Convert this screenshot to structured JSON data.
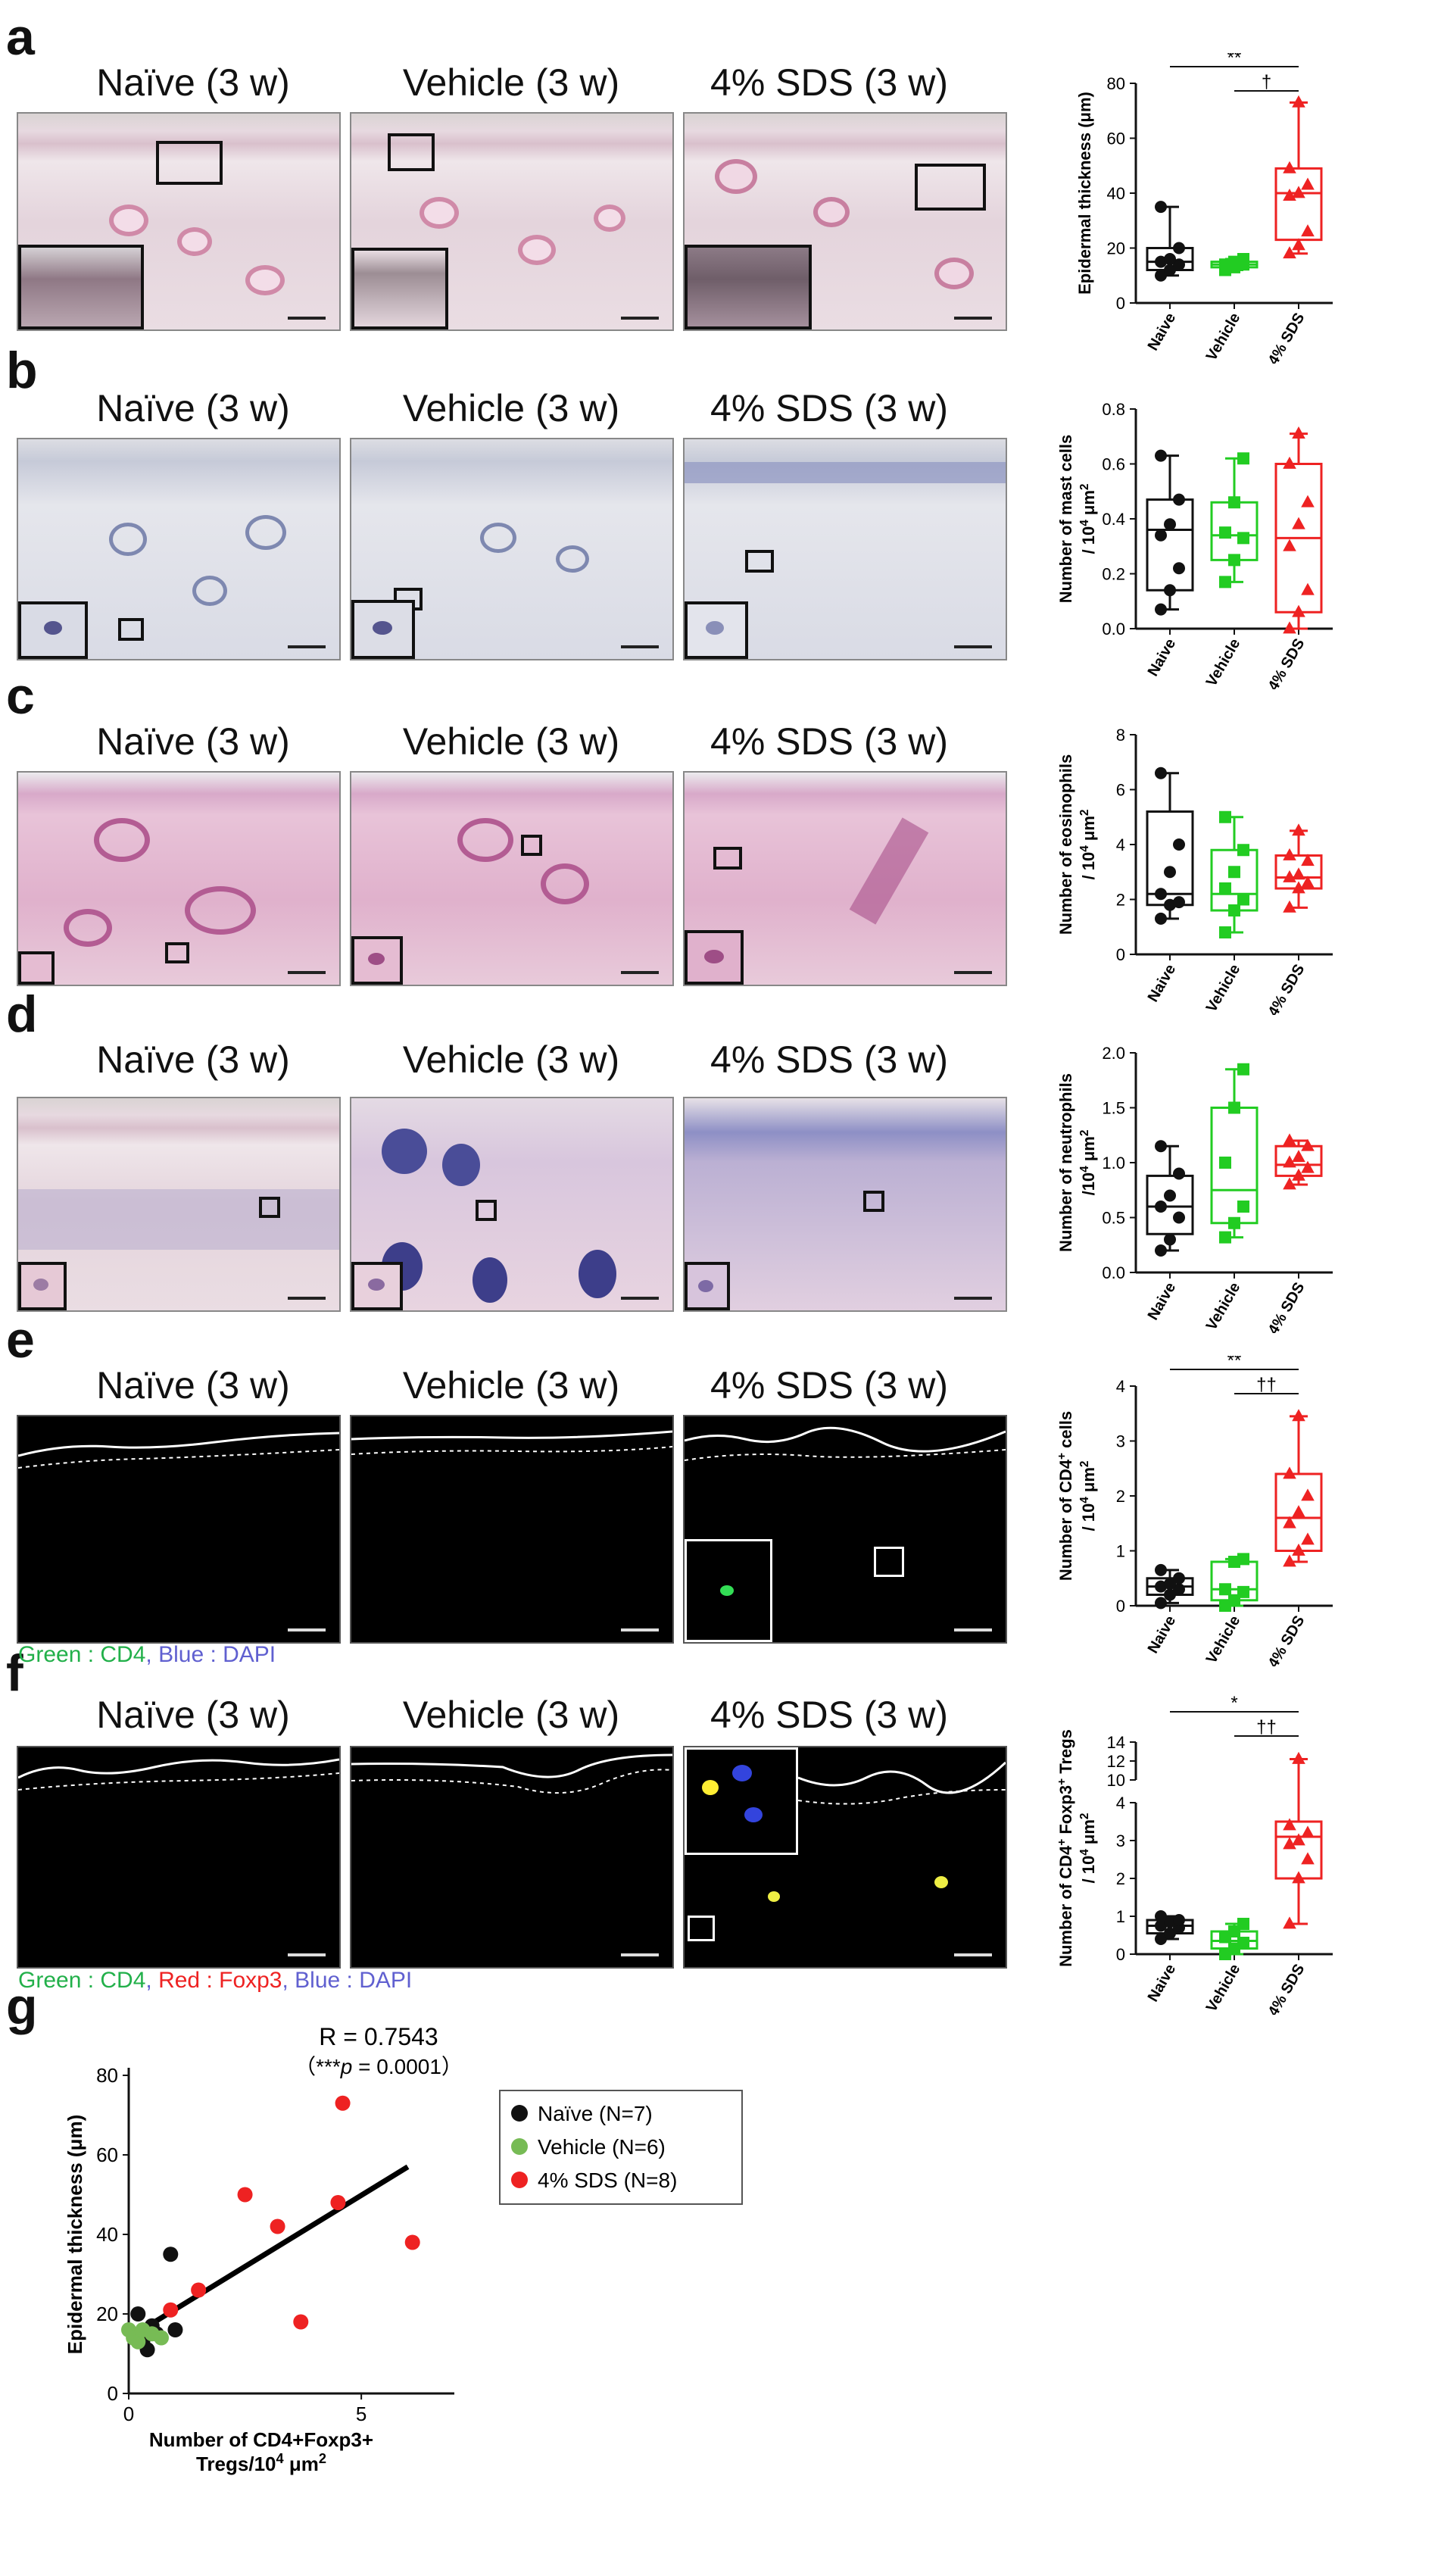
{
  "panel_labels": [
    "a",
    "b",
    "c",
    "d",
    "e",
    "f",
    "g"
  ],
  "conditions": [
    "Naïve (3 w)",
    "Vehicle (3 w)",
    "4% SDS (3 w)"
  ],
  "groups": [
    "Naive",
    "Vehicle",
    "4% SDS"
  ],
  "colors": {
    "naive": "#111111",
    "vehicle": "#22cc22",
    "sds": "#ee2222"
  },
  "captions": {
    "e": [
      {
        "text": "Green : CD4",
        "color": "#22b04a"
      },
      {
        "text": ", ",
        "color": "#6060d0"
      },
      {
        "text": "Blue : DAPI",
        "color": "#6060d0"
      }
    ],
    "f": [
      {
        "text": "Green : CD4",
        "color": "#22b04a"
      },
      {
        "text": ", ",
        "color": "#6060d0"
      },
      {
        "text": "Red : Foxp3",
        "color": "#ee2222"
      },
      {
        "text": ", ",
        "color": "#6060d0"
      },
      {
        "text": "Blue : DAPI",
        "color": "#6060d0"
      }
    ]
  },
  "chart_data": [
    {
      "type": "box",
      "panel": "a",
      "ylabel": "Epidermal thickness (μm)",
      "ylim": [
        0,
        80
      ],
      "yticks": [
        0,
        20,
        40,
        60,
        80
      ],
      "categories": [
        "Naive",
        "Vehicle",
        "4% SDS"
      ],
      "boxes": [
        {
          "min": 10,
          "q1": 12,
          "median": 15,
          "q3": 20,
          "max": 35
        },
        {
          "min": 12,
          "q1": 13,
          "median": 14,
          "q3": 15,
          "max": 16
        },
        {
          "min": 18,
          "q1": 23,
          "median": 40,
          "q3": 49,
          "max": 73
        }
      ],
      "points": [
        [
          10,
          12,
          14,
          15,
          16,
          20,
          35
        ],
        [
          12,
          13,
          14,
          14,
          15,
          16
        ],
        [
          18,
          21,
          26,
          39,
          40,
          43,
          49,
          73
        ]
      ],
      "significance": [
        {
          "from": 0,
          "to": 2,
          "label": "**"
        },
        {
          "from": 1,
          "to": 2,
          "label": "†"
        }
      ]
    },
    {
      "type": "box",
      "panel": "b",
      "ylabel_lines": [
        "Number of mast cells",
        "/ 10^4 μm^2"
      ],
      "ylim": [
        0,
        0.8
      ],
      "yticks": [
        0.0,
        0.2,
        0.4,
        0.6,
        0.8
      ],
      "categories": [
        "Naive",
        "Vehicle",
        "4% SDS"
      ],
      "boxes": [
        {
          "min": 0.07,
          "q1": 0.14,
          "median": 0.36,
          "q3": 0.47,
          "max": 0.63
        },
        {
          "min": 0.17,
          "q1": 0.25,
          "median": 0.34,
          "q3": 0.46,
          "max": 0.62
        },
        {
          "min": 0.0,
          "q1": 0.06,
          "median": 0.33,
          "q3": 0.6,
          "max": 0.71
        }
      ],
      "points": [
        [
          0.07,
          0.14,
          0.22,
          0.34,
          0.38,
          0.47,
          0.63
        ],
        [
          0.17,
          0.25,
          0.33,
          0.35,
          0.46,
          0.62
        ],
        [
          0.0,
          0.06,
          0.14,
          0.3,
          0.38,
          0.46,
          0.6,
          0.71
        ]
      ],
      "significance": []
    },
    {
      "type": "box",
      "panel": "c",
      "ylabel_lines": [
        "Number of eosinophils",
        "/ 10^4 μm^2"
      ],
      "ylim": [
        0,
        8
      ],
      "yticks": [
        0,
        2,
        4,
        6,
        8
      ],
      "categories": [
        "Naive",
        "Vehicle",
        "4% SDS"
      ],
      "boxes": [
        {
          "min": 1.3,
          "q1": 1.8,
          "median": 2.2,
          "q3": 5.2,
          "max": 6.6
        },
        {
          "min": 0.8,
          "q1": 1.6,
          "median": 2.2,
          "q3": 3.8,
          "max": 5.0
        },
        {
          "min": 1.7,
          "q1": 2.4,
          "median": 2.8,
          "q3": 3.6,
          "max": 4.5
        }
      ],
      "points": [
        [
          1.3,
          1.8,
          1.9,
          2.2,
          3.0,
          4.0,
          6.6
        ],
        [
          0.8,
          1.6,
          2.0,
          2.4,
          3.0,
          3.8,
          5.0
        ],
        [
          1.7,
          2.4,
          2.6,
          2.8,
          2.9,
          3.4,
          3.6,
          4.5
        ]
      ],
      "significance": []
    },
    {
      "type": "box",
      "panel": "d",
      "ylabel_lines": [
        "Number of neutrophils",
        "/10^4 μm^2"
      ],
      "ylim": [
        0,
        2.0
      ],
      "yticks": [
        0.0,
        0.5,
        1.0,
        1.5,
        2.0
      ],
      "categories": [
        "Naive",
        "Vehicle",
        "4% SDS"
      ],
      "boxes": [
        {
          "min": 0.2,
          "q1": 0.35,
          "median": 0.6,
          "q3": 0.88,
          "max": 1.15
        },
        {
          "min": 0.32,
          "q1": 0.45,
          "median": 0.75,
          "q3": 1.5,
          "max": 1.85
        },
        {
          "min": 0.8,
          "q1": 0.88,
          "median": 0.98,
          "q3": 1.15,
          "max": 1.2
        }
      ],
      "points": [
        [
          0.2,
          0.3,
          0.5,
          0.6,
          0.7,
          0.9,
          1.15
        ],
        [
          0.32,
          0.45,
          0.6,
          1.0,
          1.5,
          1.85
        ],
        [
          0.8,
          0.88,
          0.95,
          1.0,
          1.05,
          1.15,
          1.2
        ]
      ],
      "significance": []
    },
    {
      "type": "box",
      "panel": "e",
      "ylabel_lines": [
        "Number of CD4^+ cells",
        "/ 10^4 μm^2"
      ],
      "ylim": [
        0,
        4
      ],
      "yticks": [
        0,
        1,
        2,
        3,
        4
      ],
      "categories": [
        "Naive",
        "Vehicle",
        "4% SDS"
      ],
      "boxes": [
        {
          "min": 0.05,
          "q1": 0.2,
          "median": 0.35,
          "q3": 0.5,
          "max": 0.65
        },
        {
          "min": 0.0,
          "q1": 0.1,
          "median": 0.3,
          "q3": 0.8,
          "max": 0.85
        },
        {
          "min": 0.8,
          "q1": 1.0,
          "median": 1.6,
          "q3": 2.4,
          "max": 3.45
        }
      ],
      "points": [
        [
          0.05,
          0.2,
          0.3,
          0.35,
          0.4,
          0.5,
          0.65
        ],
        [
          0.0,
          0.1,
          0.25,
          0.3,
          0.8,
          0.85
        ],
        [
          0.8,
          1.0,
          1.2,
          1.5,
          1.7,
          2.0,
          2.4,
          3.45
        ]
      ],
      "significance": [
        {
          "from": 0,
          "to": 2,
          "label": "**"
        },
        {
          "from": 1,
          "to": 2,
          "label": "††"
        }
      ]
    },
    {
      "type": "box",
      "panel": "f",
      "broken_axis": true,
      "ylabel_lines": [
        "Number of CD4^+ Foxp3^+ Tregs",
        "/ 10^4 μm^2"
      ],
      "ylim_lower": [
        0,
        4
      ],
      "ylim_upper": [
        10,
        14
      ],
      "yticks_lower": [
        0,
        1,
        2,
        3,
        4
      ],
      "yticks_upper": [
        10,
        12,
        14
      ],
      "categories": [
        "Naive",
        "Vehicle",
        "4% SDS"
      ],
      "boxes": [
        {
          "min": 0.4,
          "q1": 0.55,
          "median": 0.75,
          "q3": 0.9,
          "max": 1.0
        },
        {
          "min": 0.0,
          "q1": 0.15,
          "median": 0.35,
          "q3": 0.6,
          "max": 0.8
        },
        {
          "min": 0.8,
          "q1": 2.0,
          "median": 3.1,
          "q3": 3.5,
          "max": 12.2
        }
      ],
      "points": [
        [
          0.4,
          0.55,
          0.7,
          0.75,
          0.85,
          0.9,
          1.0
        ],
        [
          0.0,
          0.15,
          0.3,
          0.45,
          0.6,
          0.8
        ],
        [
          0.8,
          2.0,
          2.5,
          2.9,
          3.0,
          3.2,
          3.4,
          12.2
        ]
      ],
      "significance": [
        {
          "from": 0,
          "to": 2,
          "label": "*"
        },
        {
          "from": 1,
          "to": 2,
          "label": "††"
        }
      ]
    },
    {
      "type": "scatter",
      "panel": "g",
      "xlabel_lines": [
        "Number of CD4+Foxp3+",
        "Tregs/10^4 μm^2"
      ],
      "ylabel": "Epidermal thickness (μm)",
      "xlim": [
        0,
        7
      ],
      "ylim": [
        0,
        80
      ],
      "xticks": [
        0,
        5
      ],
      "yticks": [
        0,
        20,
        40,
        60,
        80
      ],
      "annotation_r": "R = 0.7543",
      "annotation_p": [
        "（***",
        "p",
        " = 0.0001）"
      ],
      "fit": {
        "x0": 0,
        "y0": 14,
        "x1": 6,
        "y1": 57
      },
      "series": [
        {
          "name": "Naïve (N=7)",
          "color": "#111111",
          "points": [
            [
              0.2,
              20
            ],
            [
              0.3,
              13
            ],
            [
              0.4,
              11
            ],
            [
              0.5,
              17
            ],
            [
              0.6,
              15
            ],
            [
              0.9,
              35
            ],
            [
              1.0,
              16
            ]
          ]
        },
        {
          "name": "Vehicle (N=6)",
          "color": "#77bb55",
          "points": [
            [
              0.0,
              16
            ],
            [
              0.1,
              14
            ],
            [
              0.2,
              13
            ],
            [
              0.3,
              16
            ],
            [
              0.5,
              15
            ],
            [
              0.7,
              14
            ]
          ]
        },
        {
          "name": "4% SDS (N=8)",
          "color": "#ee2222",
          "points": [
            [
              0.9,
              21
            ],
            [
              1.5,
              26
            ],
            [
              2.5,
              50
            ],
            [
              3.2,
              42
            ],
            [
              3.7,
              18
            ],
            [
              4.5,
              48
            ],
            [
              4.6,
              73
            ],
            [
              6.1,
              38
            ]
          ]
        }
      ]
    }
  ]
}
